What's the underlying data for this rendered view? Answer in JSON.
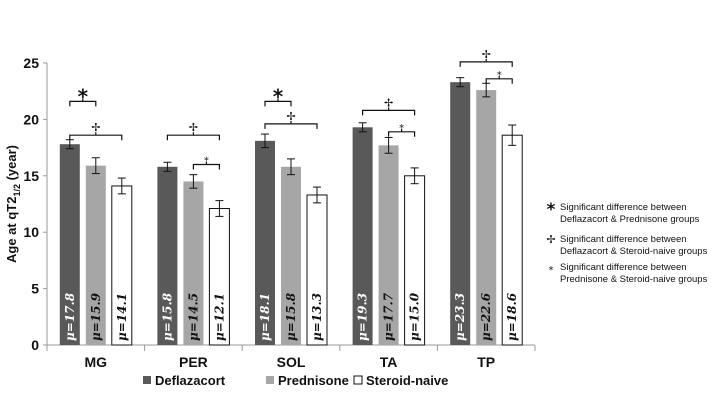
{
  "chart_data": {
    "type": "bar",
    "title": "",
    "xlabel": "",
    "ylabel": "Age at qT2",
    "ylabel_sub": "1/2",
    "ylabel_unit": " (year)",
    "ylim": [
      0,
      25
    ],
    "yticks": [
      0,
      5,
      10,
      15,
      20,
      25
    ],
    "categories": [
      "MG",
      "PER",
      "SOL",
      "TA",
      "TP"
    ],
    "series": [
      {
        "name": "Deflazacort",
        "color": "#595959",
        "values": [
          17.8,
          15.8,
          18.1,
          19.3,
          23.3
        ],
        "errors": [
          0.4,
          0.4,
          0.6,
          0.4,
          0.4
        ],
        "labels": [
          "μ=17.8",
          "μ=15.8",
          "μ=18.1",
          "μ=19.3",
          "μ=23.3"
        ]
      },
      {
        "name": "Prednisone",
        "color": "#a6a6a6",
        "values": [
          15.9,
          14.5,
          15.8,
          17.7,
          22.6
        ],
        "errors": [
          0.7,
          0.6,
          0.7,
          0.7,
          0.6
        ],
        "labels": [
          "μ=15.9",
          "μ=14.5",
          "μ=15.8",
          "μ=17.7",
          "μ=22.6"
        ]
      },
      {
        "name": "Steroid-naive",
        "color": "#ffffff",
        "values": [
          14.1,
          12.1,
          13.3,
          15.0,
          18.6
        ],
        "errors": [
          0.7,
          0.7,
          0.7,
          0.7,
          0.9
        ],
        "labels": [
          "μ=14.1",
          "μ=12.1",
          "μ=13.3",
          "μ=15.0",
          "μ=18.6"
        ]
      }
    ],
    "significance": [
      {
        "category": "MG",
        "from": 0,
        "to": 1,
        "level": 21.6,
        "symbol": "*"
      },
      {
        "category": "MG",
        "from": 0,
        "to": 2,
        "level": 18.6,
        "symbol": "✢"
      },
      {
        "category": "PER",
        "from": 0,
        "to": 2,
        "level": 18.6,
        "symbol": "✢"
      },
      {
        "category": "PER",
        "from": 1,
        "to": 2,
        "level": 16.0,
        "symbol": "⁎"
      },
      {
        "category": "SOL",
        "from": 0,
        "to": 1,
        "level": 21.6,
        "symbol": "*"
      },
      {
        "category": "SOL",
        "from": 0,
        "to": 2,
        "level": 19.6,
        "symbol": "✢"
      },
      {
        "category": "TA",
        "from": 0,
        "to": 2,
        "level": 20.8,
        "symbol": "✢"
      },
      {
        "category": "TA",
        "from": 1,
        "to": 2,
        "level": 18.9,
        "symbol": "⁎"
      },
      {
        "category": "TP",
        "from": 0,
        "to": 2,
        "level": 25.1,
        "symbol": "✢"
      },
      {
        "category": "TP",
        "from": 1,
        "to": 2,
        "level": 23.6,
        "symbol": "⁎"
      }
    ],
    "legend": [
      {
        "name": "Deflazacort",
        "color": "#595959"
      },
      {
        "name": "Prednisone",
        "color": "#a6a6a6"
      },
      {
        "name": "Steroid-naive",
        "color": "#ffffff"
      }
    ],
    "legend_position": "bottom",
    "annotations": [
      {
        "symbol": "*",
        "lines": [
          "Significant difference between",
          "Deflazacort & Prednisone groups"
        ]
      },
      {
        "symbol": "✢",
        "lines": [
          "Significant difference between",
          "Deflazacort & Steroid-naive groups"
        ]
      },
      {
        "symbol": "⁎",
        "lines": [
          "Significant difference between",
          "Prednisone & Steroid-naive groups"
        ]
      }
    ],
    "grid": false
  }
}
